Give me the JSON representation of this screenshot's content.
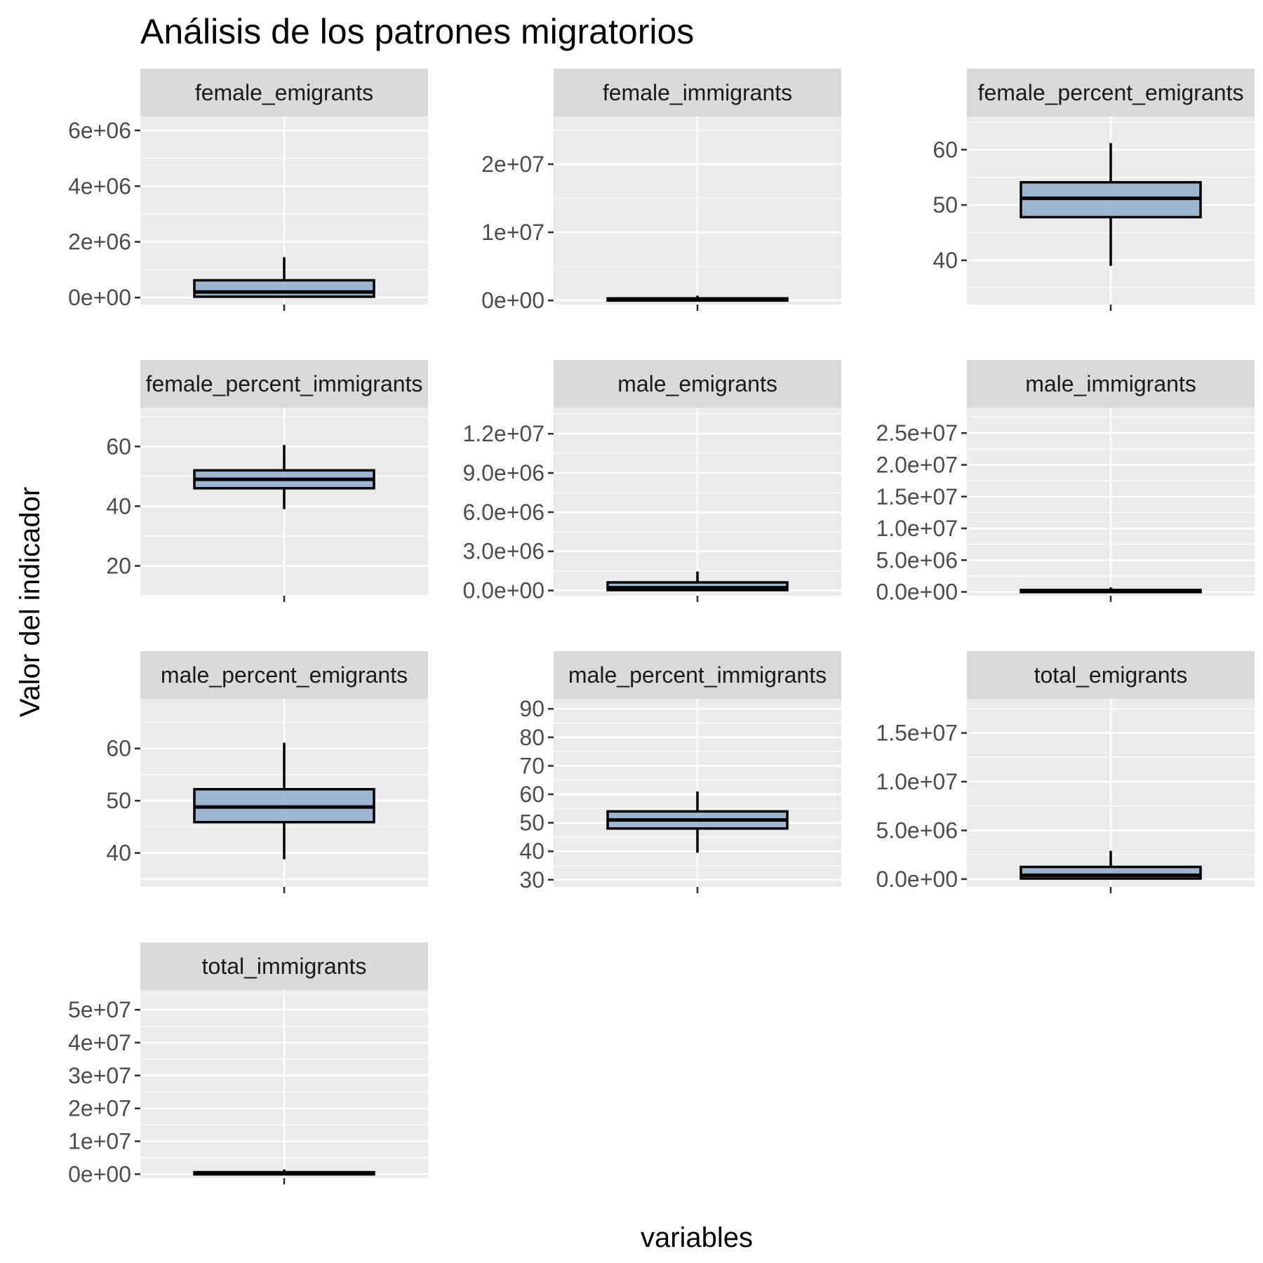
{
  "chart_data": {
    "type": "box",
    "title": "Análisis de los patrones migratorios",
    "xlabel": "variables",
    "ylabel": "Valor del indicador",
    "grid": true,
    "colors": {
      "box_fill": "#8eaccd",
      "panel_bg": "#ebebeb",
      "strip_bg": "#d9d9d9"
    },
    "panels": [
      {
        "name": "female_emigrants",
        "ylim": [
          -250000,
          6500000
        ],
        "ticks": [
          0,
          2000000,
          4000000,
          6000000
        ],
        "tick_labels": [
          "0e+00",
          "2e+06",
          "4e+06",
          "6e+06"
        ],
        "box": {
          "min": 0,
          "q1": 30000,
          "median": 200000,
          "q3": 620000,
          "max": 1450000
        }
      },
      {
        "name": "female_immigrants",
        "ylim": [
          -600000,
          27000000
        ],
        "ticks": [
          0,
          10000000,
          20000000
        ],
        "tick_labels": [
          "0e+00",
          "1e+07",
          "2e+07"
        ],
        "box": {
          "min": 0,
          "q1": 10000,
          "median": 60000,
          "q3": 300000,
          "max": 700000
        }
      },
      {
        "name": "female_percent_emigrants",
        "ylim": [
          32,
          66
        ],
        "ticks": [
          40,
          50,
          60
        ],
        "tick_labels": [
          "40",
          "50",
          "60"
        ],
        "box": {
          "min": 39,
          "q1": 47.8,
          "median": 51.2,
          "q3": 54.1,
          "max": 61.2
        }
      },
      {
        "name": "female_percent_immigrants",
        "ylim": [
          10,
          73
        ],
        "ticks": [
          20,
          40,
          60
        ],
        "tick_labels": [
          "20",
          "40",
          "60"
        ],
        "box": {
          "min": 39,
          "q1": 46,
          "median": 49,
          "q3": 52,
          "max": 60.5
        }
      },
      {
        "name": "male_emigrants",
        "ylim": [
          -400000,
          14000000
        ],
        "ticks": [
          0,
          3000000,
          6000000,
          9000000,
          12000000
        ],
        "tick_labels": [
          "0.0e+00",
          "3.0e+06",
          "6.0e+06",
          "9.0e+06",
          "1.2e+07"
        ],
        "box": {
          "min": 0,
          "q1": 30000,
          "median": 210000,
          "q3": 620000,
          "max": 1450000
        }
      },
      {
        "name": "male_immigrants",
        "ylim": [
          -600000,
          29000000
        ],
        "ticks": [
          0,
          5000000,
          10000000,
          15000000,
          20000000,
          25000000
        ],
        "tick_labels": [
          "0.0e+00",
          "5.0e+06",
          "1.0e+07",
          "1.5e+07",
          "2.0e+07",
          "2.5e+07"
        ],
        "box": {
          "min": 0,
          "q1": 10000,
          "median": 60000,
          "q3": 300000,
          "max": 700000
        }
      },
      {
        "name": "male_percent_emigrants",
        "ylim": [
          33.5,
          69.5
        ],
        "ticks": [
          40,
          50,
          60
        ],
        "tick_labels": [
          "40",
          "50",
          "60"
        ],
        "box": {
          "min": 38.8,
          "q1": 45.9,
          "median": 48.8,
          "q3": 52.2,
          "max": 61.1
        }
      },
      {
        "name": "male_percent_immigrants",
        "ylim": [
          27.5,
          93.5
        ],
        "ticks": [
          30,
          40,
          50,
          60,
          70,
          80,
          90
        ],
        "tick_labels": [
          "30",
          "40",
          "50",
          "60",
          "70",
          "80",
          "90"
        ],
        "box": {
          "min": 39.5,
          "q1": 48,
          "median": 51,
          "q3": 54,
          "max": 61
        }
      },
      {
        "name": "total_emigrants",
        "ylim": [
          -800000,
          18500000
        ],
        "ticks": [
          0,
          5000000,
          10000000,
          15000000
        ],
        "tick_labels": [
          "0.0e+00",
          "5.0e+06",
          "1.0e+07",
          "1.5e+07"
        ],
        "box": {
          "min": 0,
          "q1": 60000,
          "median": 400000,
          "q3": 1250000,
          "max": 2900000
        }
      },
      {
        "name": "total_immigrants",
        "ylim": [
          -1200000,
          56000000
        ],
        "ticks": [
          0,
          10000000,
          20000000,
          30000000,
          40000000,
          50000000
        ],
        "tick_labels": [
          "0e+00",
          "1e+07",
          "2e+07",
          "3e+07",
          "4e+07",
          "5e+07"
        ],
        "box": {
          "min": 0,
          "q1": 20000,
          "median": 130000,
          "q3": 600000,
          "max": 1400000
        }
      }
    ]
  }
}
